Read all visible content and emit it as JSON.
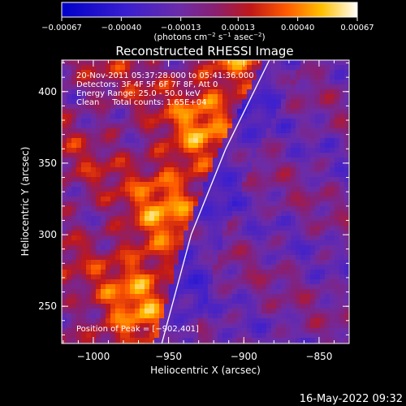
{
  "chart_data": {
    "type": "heatmap",
    "title": "Reconstructed RHESSI Image",
    "xlabel": "Heliocentric X (arcsec)",
    "ylabel": "Heliocentric Y (arcsec)",
    "xlim": [
      -1021,
      -830
    ],
    "ylim": [
      224,
      422
    ],
    "xticks": [
      -1000,
      -950,
      -900,
      -850
    ],
    "yticks": [
      250,
      300,
      350,
      400
    ],
    "xtick_labels": [
      "−1000",
      "−950",
      "−900",
      "−850"
    ],
    "ytick_labels": [
      "250",
      "300",
      "350",
      "400"
    ],
    "colorbar": {
      "range": [
        -0.00067,
        0.00067
      ],
      "ticks": [
        -0.00067,
        -0.0004,
        -0.00013,
        0.00013,
        0.0004,
        0.00067
      ],
      "tick_labels": [
        "−0.00067",
        "−0.00040",
        "−0.00013",
        "0.00013",
        "0.00040",
        "0.00067"
      ],
      "unit_label": "(photons cm",
      "unit_exp1": "−2",
      "unit_mid": " s",
      "unit_exp2": "−1",
      "unit_end": " asec",
      "unit_exp3": "−2",
      "unit_close": ")"
    },
    "peak": {
      "x": -902,
      "y": 401
    },
    "limb_curve": [
      [
        -955,
        222
      ],
      [
        -935,
        300
      ],
      [
        -912,
        360
      ],
      [
        -883,
        422
      ]
    ],
    "annotations": [
      "20-Nov-2011 05:37:28.000 to 05:41:36.000",
      "Detectors: 3F 4F 5F 6F 7F 8F, Att 0",
      "Energy Range: 25.0 - 50.0 keV",
      "Clean     Total counts: 1.65E+04"
    ],
    "peak_label": "Position of Peak = [−902,401]"
  },
  "footer": {
    "timestamp": "16-May-2022 09:32"
  }
}
